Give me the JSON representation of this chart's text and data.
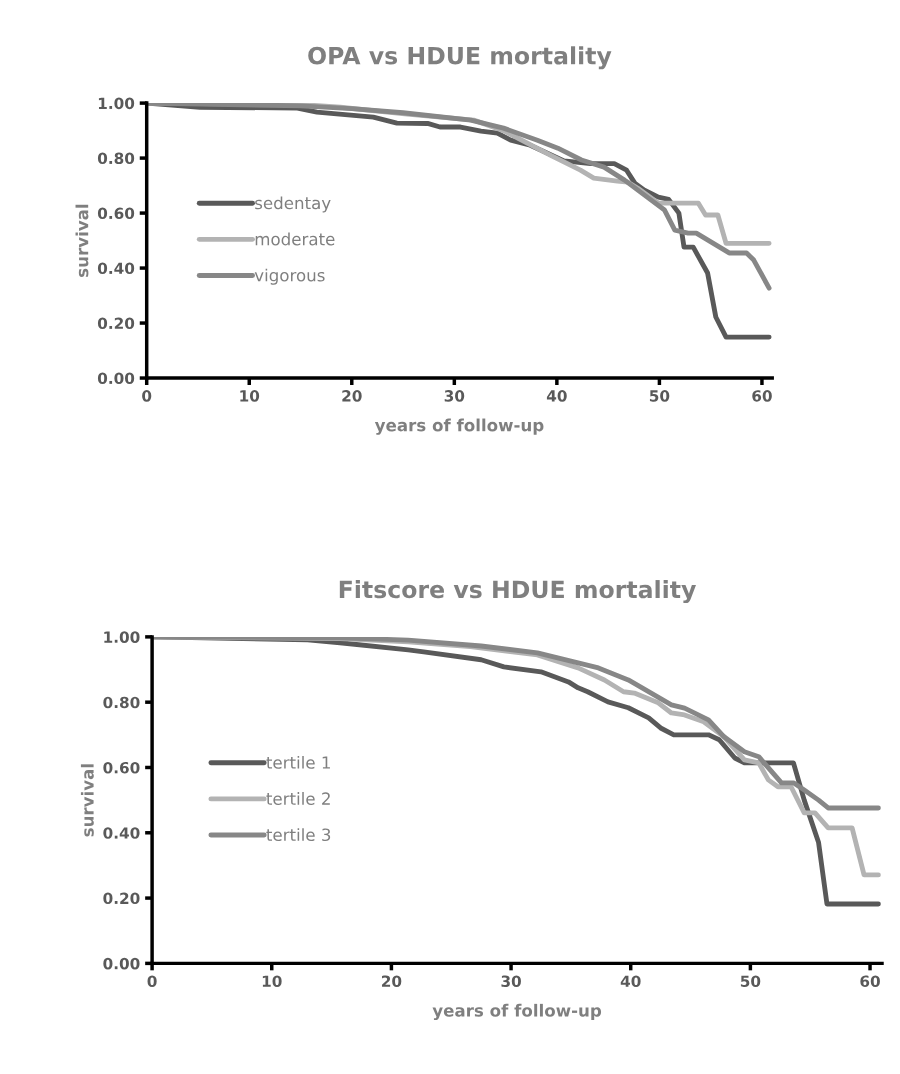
{
  "chart_data": [
    {
      "type": "line",
      "title": "OPA vs HDUE mortality",
      "xlabel": "years of follow-up",
      "ylabel": "survival",
      "xlim": [
        0,
        61
      ],
      "xticks": [
        0,
        10,
        20,
        30,
        40,
        50,
        60
      ],
      "ylim": [
        0,
        1
      ],
      "yticks": [
        {
          "value": 0,
          "label": "0.00"
        },
        {
          "value": 0.2,
          "label": "0.20"
        },
        {
          "value": 0.4,
          "label": "0.40"
        },
        {
          "value": 0.6,
          "label": "0.60"
        },
        {
          "value": 0.8,
          "label": "0.80"
        },
        {
          "value": 1,
          "label": "1.00"
        }
      ],
      "grid": false,
      "legend": "left",
      "marker": "none",
      "line_style": "solid",
      "series": [
        {
          "name": "sedentay",
          "color": "#595959",
          "x": [
            0,
            5.2,
            14.7,
            16.6,
            22.1,
            24.4,
            27.4,
            28.6,
            30.6,
            32.6,
            34.2,
            35.5,
            37.4,
            40.7,
            43.3,
            45.6,
            46.8,
            47.6,
            48.5,
            49.9,
            50.9,
            51.9,
            52.4,
            53.3,
            54.7,
            55.5,
            56.5,
            60.7
          ],
          "values": [
            1.0,
            0.985,
            0.982,
            0.967,
            0.949,
            0.927,
            0.926,
            0.913,
            0.913,
            0.898,
            0.891,
            0.865,
            0.847,
            0.79,
            0.78,
            0.78,
            0.756,
            0.709,
            0.684,
            0.658,
            0.65,
            0.6,
            0.476,
            0.476,
            0.382,
            0.222,
            0.149,
            0.149
          ]
        },
        {
          "name": "moderate",
          "color": "#b3b3b3",
          "x": [
            0,
            15,
            18.9,
            25.4,
            31.9,
            34.8,
            39.4,
            42.3,
            43.6,
            45.9,
            46.9,
            47.9,
            49.9,
            53.8,
            54.5,
            55.7,
            56.5,
            60.7
          ],
          "values": [
            1.0,
            0.995,
            0.985,
            0.96,
            0.938,
            0.9,
            0.81,
            0.756,
            0.727,
            0.716,
            0.713,
            0.69,
            0.636,
            0.636,
            0.593,
            0.593,
            0.49,
            0.49
          ]
        },
        {
          "name": "vigorous",
          "color": "#878787",
          "x": [
            0,
            15,
            20,
            25,
            31.6,
            34.8,
            38.1,
            40.1,
            42.4,
            44.6,
            46.6,
            49.2,
            50.5,
            51.5,
            52.8,
            53.6,
            56.8,
            58.5,
            59.2,
            60.7
          ],
          "values": [
            1.0,
            0.99,
            0.98,
            0.965,
            0.938,
            0.909,
            0.865,
            0.836,
            0.793,
            0.767,
            0.72,
            0.647,
            0.611,
            0.538,
            0.527,
            0.527,
            0.455,
            0.455,
            0.429,
            0.327
          ]
        }
      ]
    },
    {
      "type": "line",
      "title": "Fitscore vs HDUE mortality",
      "xlabel": "years of follow-up",
      "ylabel": "survival",
      "xlim": [
        0,
        61
      ],
      "xticks": [
        0,
        10,
        20,
        30,
        40,
        50,
        60
      ],
      "ylim": [
        0,
        1
      ],
      "yticks": [
        {
          "value": 0,
          "label": "0.00"
        },
        {
          "value": 0.2,
          "label": "0.20"
        },
        {
          "value": 0.4,
          "label": "0.40"
        },
        {
          "value": 0.6,
          "label": "0.60"
        },
        {
          "value": 0.8,
          "label": "0.80"
        },
        {
          "value": 1,
          "label": "1.00"
        }
      ],
      "grid": false,
      "legend": "left",
      "marker": "none",
      "line_style": "solid",
      "series": [
        {
          "name": "tertile 1",
          "color": "#595959",
          "x": [
            0,
            13,
            15.7,
            21.4,
            22.7,
            27.5,
            29.4,
            32.5,
            34.8,
            35.6,
            36.4,
            38.1,
            39.8,
            41.5,
            42.5,
            43.6,
            46.5,
            47.4,
            48.7,
            49.5,
            53.6,
            54.5,
            55.7,
            56.4,
            60.7
          ],
          "values": [
            1.0,
            0.991,
            0.982,
            0.96,
            0.954,
            0.93,
            0.908,
            0.893,
            0.862,
            0.844,
            0.832,
            0.801,
            0.783,
            0.752,
            0.721,
            0.7,
            0.7,
            0.685,
            0.629,
            0.614,
            0.614,
            0.5,
            0.37,
            0.182,
            0.182
          ]
        },
        {
          "name": "tertile 2",
          "color": "#b3b3b3",
          "x": [
            0,
            15.7,
            21.4,
            26.6,
            32.2,
            35.6,
            37.8,
            39.4,
            40.3,
            42.3,
            43.4,
            44.5,
            46.1,
            47.8,
            49.5,
            50.7,
            51.5,
            52.3,
            53.4,
            54.5,
            55.4,
            56.5,
            58.5,
            59.5,
            60.7
          ],
          "values": [
            1.0,
            0.995,
            0.985,
            0.97,
            0.945,
            0.905,
            0.868,
            0.832,
            0.828,
            0.798,
            0.767,
            0.761,
            0.74,
            0.694,
            0.623,
            0.614,
            0.562,
            0.541,
            0.541,
            0.461,
            0.461,
            0.415,
            0.415,
            0.271,
            0.271
          ]
        },
        {
          "name": "tertile 3",
          "color": "#878787",
          "x": [
            0,
            15.7,
            21.4,
            27.5,
            32.2,
            37.3,
            39.8,
            43.4,
            44.5,
            46.5,
            47.8,
            49.5,
            50.7,
            52.6,
            53.6,
            54.5,
            55.7,
            56.5,
            60.7
          ],
          "values": [
            1.0,
            0.997,
            0.99,
            0.972,
            0.951,
            0.905,
            0.868,
            0.792,
            0.782,
            0.746,
            0.694,
            0.648,
            0.633,
            0.553,
            0.553,
            0.531,
            0.5,
            0.476,
            0.476
          ]
        }
      ]
    }
  ]
}
